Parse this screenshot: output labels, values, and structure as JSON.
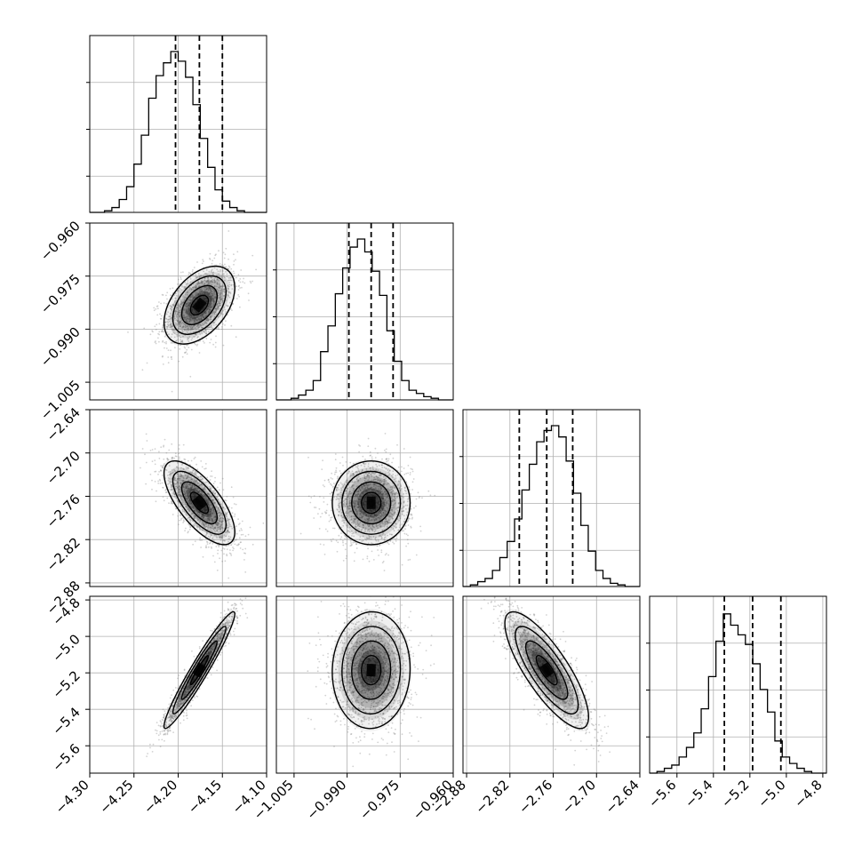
{
  "chart_data": {
    "type": "corner",
    "parameters": [
      {
        "index": 0,
        "ticks": [
          "−4.30",
          "−4.25",
          "−4.20",
          "−4.15",
          "−4.10"
        ],
        "tick_values": [
          -4.3,
          -4.25,
          -4.2,
          -4.15,
          -4.1
        ],
        "range": [
          -4.3,
          -4.1
        ],
        "quantiles": [
          -4.203,
          -4.176,
          -4.15
        ],
        "hist_counts": [
          0,
          0,
          0.01,
          0.03,
          0.08,
          0.16,
          0.3,
          0.48,
          0.71,
          0.85,
          0.93,
          1.0,
          0.94,
          0.84,
          0.67,
          0.46,
          0.28,
          0.14,
          0.07,
          0.03,
          0.01,
          0,
          0,
          0
        ]
      },
      {
        "index": 1,
        "ticks": [
          "−1.005",
          "−0.990",
          "−0.975",
          "−0.960"
        ],
        "tick_values": [
          -1.005,
          -0.99,
          -0.975,
          -0.96
        ],
        "range": [
          -1.01,
          -0.96
        ],
        "quantiles": [
          -0.9895,
          -0.9832,
          -0.977
        ],
        "hist_counts": [
          0,
          0,
          0.01,
          0.03,
          0.06,
          0.12,
          0.3,
          0.46,
          0.66,
          0.82,
          0.95,
          1.0,
          0.92,
          0.8,
          0.65,
          0.43,
          0.24,
          0.12,
          0.06,
          0.04,
          0.02,
          0.01,
          0,
          0
        ]
      },
      {
        "index": 2,
        "ticks": [
          "−2.88",
          "−2.82",
          "−2.76",
          "−2.70",
          "−2.64"
        ],
        "tick_values": [
          -2.88,
          -2.82,
          -2.76,
          -2.7,
          -2.64
        ],
        "range": [
          -2.885,
          -2.64
        ],
        "quantiles": [
          -2.807,
          -2.769,
          -2.733
        ],
        "hist_counts": [
          0,
          0.01,
          0.03,
          0.05,
          0.1,
          0.18,
          0.28,
          0.42,
          0.6,
          0.76,
          0.9,
          0.97,
          1.0,
          0.93,
          0.78,
          0.58,
          0.38,
          0.22,
          0.1,
          0.05,
          0.02,
          0.01,
          0,
          0
        ]
      },
      {
        "index": 3,
        "ticks": [
          "−5.6",
          "−5.4",
          "−5.2",
          "−5.0",
          "−4.8"
        ],
        "tick_values": [
          -5.6,
          -5.4,
          -5.2,
          -5.0,
          -4.8
        ],
        "range": [
          -5.75,
          -4.78
        ],
        "quantiles": [
          -5.34,
          -5.185,
          -5.03
        ],
        "hist_counts": [
          0,
          0.01,
          0.03,
          0.05,
          0.1,
          0.16,
          0.25,
          0.4,
          0.6,
          0.82,
          0.99,
          0.92,
          0.86,
          0.8,
          0.68,
          0.52,
          0.38,
          0.2,
          0.1,
          0.06,
          0.03,
          0.01,
          0,
          0
        ]
      }
    ],
    "pairs": [
      {
        "x": 0,
        "y": 1,
        "center": [
          -4.176,
          -0.9832
        ],
        "sigma": [
          0.02,
          0.0055
        ],
        "rho": 0.45
      },
      {
        "x": 0,
        "y": 2,
        "center": [
          -4.176,
          -2.769
        ],
        "sigma": [
          0.02,
          0.029
        ],
        "rho": -0.7
      },
      {
        "x": 1,
        "y": 2,
        "center": [
          -0.9832,
          -2.769
        ],
        "sigma": [
          0.0055,
          0.029
        ],
        "rho": 0.0
      },
      {
        "x": 0,
        "y": 3,
        "center": [
          -4.176,
          -5.185
        ],
        "sigma": [
          0.02,
          0.16
        ],
        "rho": 0.96
      },
      {
        "x": 1,
        "y": 3,
        "center": [
          -0.9832,
          -5.185
        ],
        "sigma": [
          0.0055,
          0.16
        ],
        "rho": 0.03
      },
      {
        "x": 2,
        "y": 3,
        "center": [
          -2.769,
          -5.185
        ],
        "sigma": [
          0.029,
          0.16
        ],
        "rho": -0.8
      }
    ],
    "contour_levels": [
      0.5,
      1.0,
      1.5,
      2.0
    ],
    "grid": true,
    "colors": {
      "line": "#000000",
      "grid": "#b0b0b0",
      "density": "#000000",
      "points": "#7f7f7f"
    }
  }
}
